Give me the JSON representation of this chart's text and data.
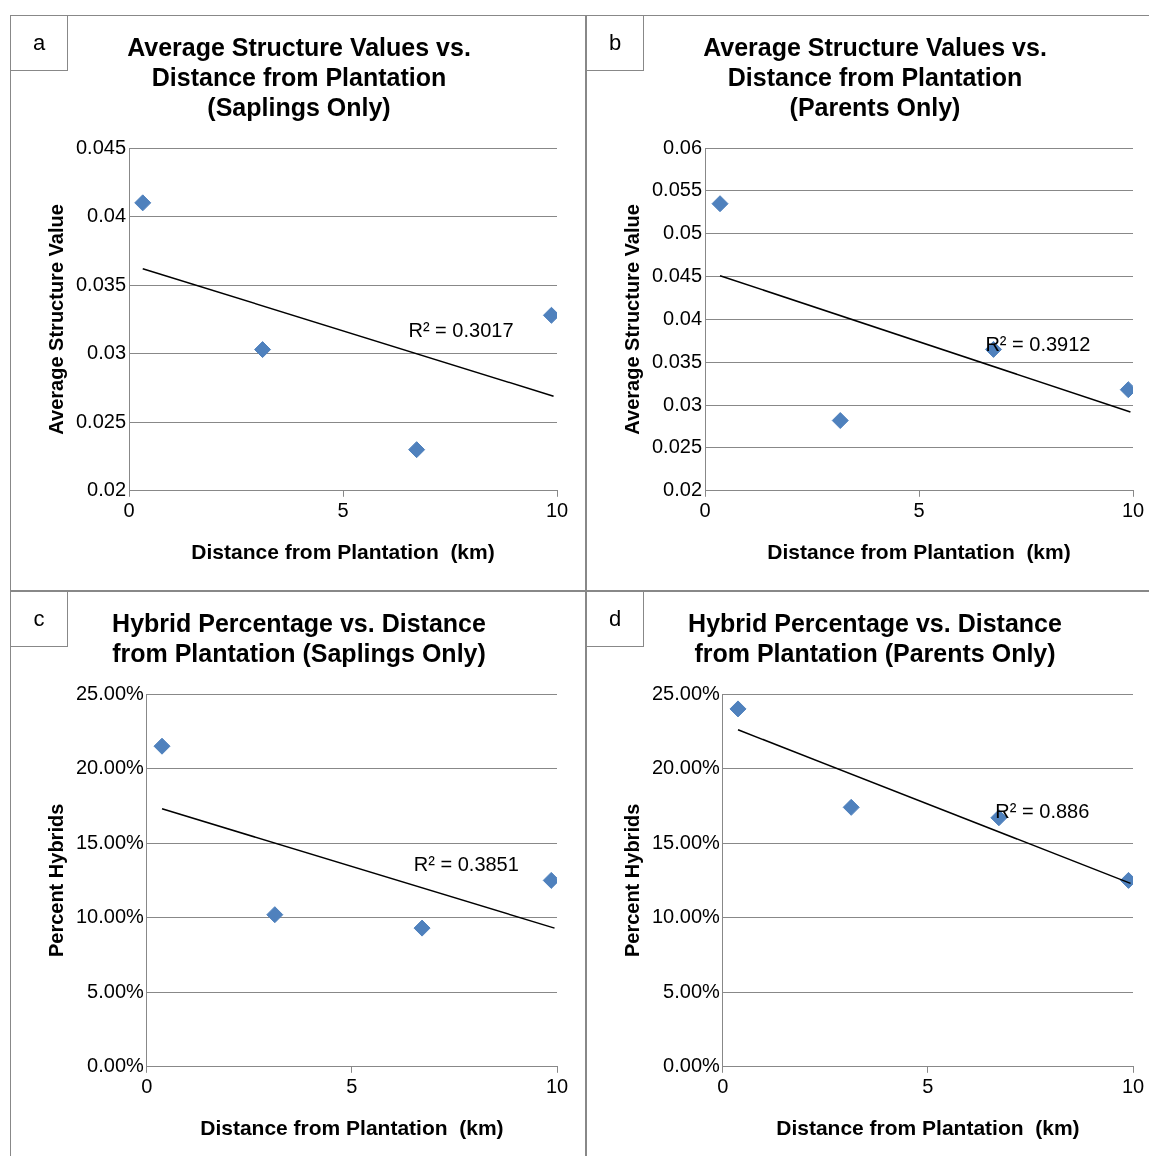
{
  "chart_data": [
    {
      "type": "scatter",
      "title": "Average Structure Values vs. Distance from Plantation (Saplings Only)",
      "xlabel": "Distance from Plantation  (km)",
      "ylabel": "Average Structure Value",
      "xlim": [
        0,
        10
      ],
      "xticks": [
        0,
        5,
        10
      ],
      "ylim": [
        0.02,
        0.045
      ],
      "yticks": [
        0.02,
        0.025,
        0.03,
        0.035,
        0.04,
        0.045
      ],
      "grid": "y",
      "series": [
        {
          "type": "scatter",
          "color": "#4f81bd",
          "marker": "diamond",
          "x": [
            0.32,
            3.12,
            6.72,
            9.87
          ],
          "values": [
            0.041,
            0.0303,
            0.023,
            0.0328
          ]
        },
        {
          "type": "line",
          "color": "#000000",
          "marker": "none",
          "x": [
            0.32,
            9.92
          ],
          "values": [
            0.0362,
            0.0269
          ]
        }
      ],
      "annotations": [
        "a",
        "R² = 0.3017"
      ]
    },
    {
      "type": "scatter",
      "title": "Average Structure Values vs. Distance from Plantation (Parents Only)",
      "xlabel": "Distance from Plantation  (km)",
      "ylabel": "Average Structure Value",
      "xlim": [
        0,
        10
      ],
      "xticks": [
        0,
        5,
        10
      ],
      "ylim": [
        0.02,
        0.06
      ],
      "yticks": [
        0.02,
        0.025,
        0.03,
        0.035,
        0.04,
        0.045,
        0.05,
        0.055,
        0.06
      ],
      "grid": "y",
      "series": [
        {
          "type": "scatter",
          "color": "#4f81bd",
          "marker": "diamond",
          "x": [
            0.35,
            3.16,
            6.74,
            9.89
          ],
          "values": [
            0.0535,
            0.0282,
            0.0365,
            0.0318
          ]
        },
        {
          "type": "line",
          "color": "#000000",
          "marker": "none",
          "x": [
            0.35,
            9.94
          ],
          "values": [
            0.0451,
            0.0292
          ]
        }
      ],
      "annotations": [
        "b",
        "R² = 0.3912"
      ]
    },
    {
      "type": "scatter",
      "title": "Hybrid Percentage vs. Distance from Plantation (Saplings Only)",
      "xlabel": "Distance from Plantation  (km)",
      "ylabel": "Percent Hybrids",
      "xlim": [
        0,
        10
      ],
      "xticks": [
        0,
        5,
        10
      ],
      "ylim": [
        0,
        25
      ],
      "yticks": [
        {
          "value": 0,
          "label": "0.00%"
        },
        {
          "value": 5,
          "label": "5.00%"
        },
        {
          "value": 10,
          "label": "10.00%"
        },
        {
          "value": 15,
          "label": "15.00%"
        },
        {
          "value": 20,
          "label": "20.00%"
        },
        {
          "value": 25,
          "label": "25.00%"
        }
      ],
      "grid": "y",
      "series": [
        {
          "type": "scatter",
          "color": "#4f81bd",
          "marker": "diamond",
          "x": [
            0.37,
            3.12,
            6.71,
            9.86
          ],
          "values": [
            21.5,
            10.2,
            9.3,
            12.5
          ]
        },
        {
          "type": "line",
          "color": "#000000",
          "marker": "none",
          "x": [
            0.37,
            9.94
          ],
          "values": [
            17.3,
            9.3
          ]
        }
      ],
      "annotations": [
        "c",
        "R² = 0.3851"
      ]
    },
    {
      "type": "scatter",
      "title": "Hybrid Percentage vs. Distance from Plantation (Parents Only)",
      "xlabel": "Distance from Plantation  (km)",
      "ylabel": "Percent Hybrids",
      "xlim": [
        0,
        10
      ],
      "xticks": [
        0,
        5,
        10
      ],
      "ylim": [
        0,
        25
      ],
      "yticks": [
        {
          "value": 0,
          "label": "0.00%"
        },
        {
          "value": 5,
          "label": "5.00%"
        },
        {
          "value": 10,
          "label": "10.00%"
        },
        {
          "value": 15,
          "label": "15.00%"
        },
        {
          "value": 20,
          "label": "20.00%"
        },
        {
          "value": 25,
          "label": "25.00%"
        }
      ],
      "grid": "y",
      "series": [
        {
          "type": "scatter",
          "color": "#4f81bd",
          "marker": "diamond",
          "x": [
            0.37,
            3.13,
            6.73,
            9.89
          ],
          "values": [
            24.0,
            17.4,
            16.7,
            12.5
          ]
        },
        {
          "type": "line",
          "color": "#000000",
          "marker": "none",
          "x": [
            0.37,
            9.94
          ],
          "values": [
            22.6,
            12.3
          ]
        }
      ],
      "annotations": [
        "d",
        "R² = 0.886"
      ]
    }
  ]
}
